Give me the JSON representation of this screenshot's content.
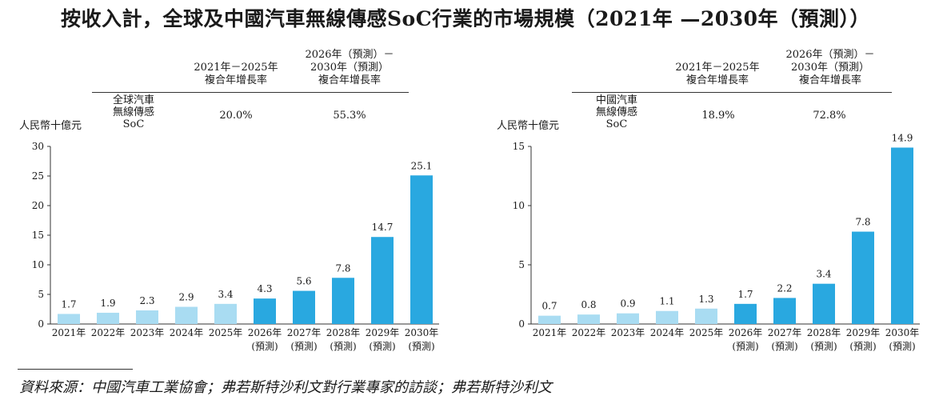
{
  "title": "按收入計，全球及中國汽車無線傳感SoC行業的市場規模（2021年 —2030年（預測））",
  "colors": {
    "historical": "#a9dcf2",
    "forecast": "#29a8e0",
    "axis": "#333333"
  },
  "left": {
    "header": {
      "cagr1_lines": [
        "2021年－2025年",
        "複合年增長率"
      ],
      "cagr2_lines": [
        "2026年（預測）－",
        "2030年（預測）",
        "複合年增長率"
      ]
    },
    "row_label_lines": [
      "全球汽車",
      "無線傳感",
      "SoC"
    ],
    "cagr1_value": "20.0%",
    "cagr2_value": "55.3%",
    "unit": "人民幣十億元"
  },
  "right": {
    "header": {
      "cagr1_lines": [
        "2021年－2025年",
        "複合年增長率"
      ],
      "cagr2_lines": [
        "2026年（預測）－",
        "2030年（預測）",
        "複合年增長率"
      ]
    },
    "row_label_lines": [
      "中國汽車",
      "無線傳感",
      "SoC"
    ],
    "cagr1_value": "18.9%",
    "cagr2_value": "72.8%",
    "unit": "人民幣十億元"
  },
  "chart_data": [
    {
      "type": "bar",
      "categories": [
        "2021年",
        "2022年",
        "2023年",
        "2024年",
        "2025年",
        "2026年\n(預測)",
        "2027年\n(預測)",
        "2028年\n(預測)",
        "2029年\n(預測)",
        "2030年\n(預測)"
      ],
      "values": [
        1.7,
        1.9,
        2.3,
        2.9,
        3.4,
        4.3,
        5.6,
        7.8,
        14.7,
        25.1
      ],
      "labels": [
        "1.7",
        "1.9",
        "2.3",
        "2.9",
        "3.4",
        "4.3",
        "5.6",
        "7.8",
        "14.7",
        "25.1"
      ],
      "forecast_from_index": 5,
      "ylim": [
        0,
        30
      ],
      "yticks": [
        0,
        5,
        10,
        15,
        20,
        25,
        30
      ],
      "ylabel": "人民幣十億元",
      "grid": false
    },
    {
      "type": "bar",
      "categories": [
        "2021年",
        "2022年",
        "2023年",
        "2024年",
        "2025年",
        "2026年\n(預測)",
        "2027年\n(預測)",
        "2028年\n(預測)",
        "2029年\n(預測)",
        "2030年\n(預測)"
      ],
      "values": [
        0.7,
        0.8,
        0.9,
        1.1,
        1.3,
        1.7,
        2.2,
        3.4,
        7.8,
        14.9
      ],
      "labels": [
        "0.7",
        "0.8",
        "0.9",
        "1.1",
        "1.3",
        "1.7",
        "2.2",
        "3.4",
        "7.8",
        "14.9"
      ],
      "forecast_from_index": 5,
      "ylim": [
        0,
        15
      ],
      "yticks": [
        0,
        5,
        10,
        15
      ],
      "ylabel": "人民幣十億元",
      "grid": false
    }
  ],
  "source": "資料來源：中國汽車工業協會；弗若斯特沙利文對行業專家的訪談；弗若斯特沙利文"
}
